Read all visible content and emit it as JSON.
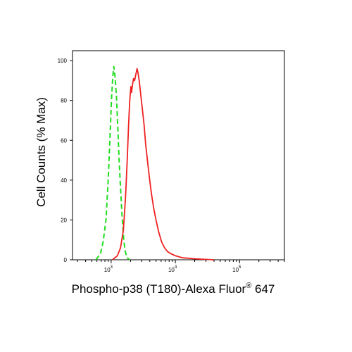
{
  "chart_data": {
    "type": "line",
    "xscale": "log",
    "xlim": [
      250,
      500000
    ],
    "ylim": [
      0,
      105
    ],
    "xlabel": "Phospho-p38 (T180)-Alexa Fluor",
    "xlabel_sup": "®",
    "xlabel_suffix": " 647",
    "ylabel": "Cell Counts (% Max)",
    "grid": false,
    "y_ticks": [
      {
        "value": 0,
        "label": "0"
      },
      {
        "value": 20,
        "label": "20"
      },
      {
        "value": 40,
        "label": "40"
      },
      {
        "value": 60,
        "label": "60"
      },
      {
        "value": 80,
        "label": "80"
      },
      {
        "value": 100,
        "label": "100"
      }
    ],
    "x_ticks": [
      {
        "value": 1000,
        "base": "10",
        "exp": "3"
      },
      {
        "value": 10000,
        "base": "10",
        "exp": "4"
      },
      {
        "value": 100000,
        "base": "10",
        "exp": "5"
      }
    ],
    "series": [
      {
        "color": "#22dd22",
        "dash": "dashed",
        "points": [
          [
            580,
            0
          ],
          [
            680,
            3
          ],
          [
            750,
            9
          ],
          [
            830,
            20
          ],
          [
            900,
            40
          ],
          [
            960,
            62
          ],
          [
            1010,
            80
          ],
          [
            1060,
            92
          ],
          [
            1100,
            97
          ],
          [
            1150,
            92
          ],
          [
            1210,
            82
          ],
          [
            1270,
            66
          ],
          [
            1330,
            50
          ],
          [
            1400,
            36
          ],
          [
            1480,
            22
          ],
          [
            1570,
            10
          ],
          [
            1660,
            4
          ],
          [
            1780,
            1
          ],
          [
            1950,
            0
          ]
        ]
      },
      {
        "color": "#ee2222",
        "dash": "solid",
        "points": [
          [
            1050,
            0
          ],
          [
            1250,
            2
          ],
          [
            1400,
            6
          ],
          [
            1550,
            15
          ],
          [
            1680,
            32
          ],
          [
            1780,
            50
          ],
          [
            1870,
            68
          ],
          [
            1950,
            80
          ],
          [
            2030,
            87
          ],
          [
            2080,
            84
          ],
          [
            2150,
            88
          ],
          [
            2230,
            91
          ],
          [
            2320,
            90
          ],
          [
            2420,
            93
          ],
          [
            2530,
            96
          ],
          [
            2620,
            94
          ],
          [
            2730,
            90
          ],
          [
            2870,
            84
          ],
          [
            3050,
            76
          ],
          [
            3250,
            68
          ],
          [
            3450,
            58
          ],
          [
            3700,
            49
          ],
          [
            3950,
            41
          ],
          [
            4250,
            33
          ],
          [
            4600,
            26
          ],
          [
            5000,
            20
          ],
          [
            5500,
            14
          ],
          [
            6100,
            9
          ],
          [
            6800,
            6
          ],
          [
            7600,
            4
          ],
          [
            8600,
            3
          ],
          [
            10000,
            2
          ],
          [
            13000,
            1
          ],
          [
            20000,
            0.5
          ],
          [
            40000,
            0
          ]
        ]
      }
    ]
  }
}
